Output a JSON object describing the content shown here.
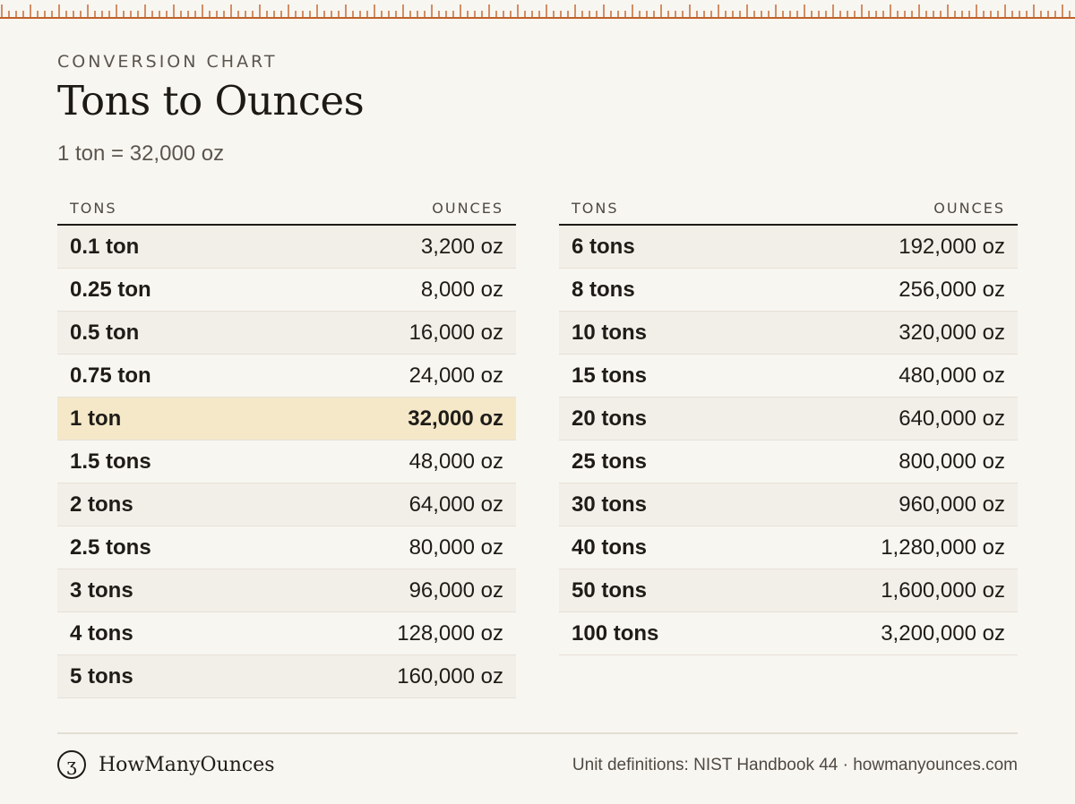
{
  "header": {
    "eyebrow": "CONVERSION CHART",
    "title": "Tons to Ounces",
    "subtitle": "1 ton = 32,000 oz"
  },
  "columns": {
    "tons": "TONS",
    "ounces": "OUNCES"
  },
  "left_rows": [
    {
      "tons": "0.1 ton",
      "oz": "3,200 oz"
    },
    {
      "tons": "0.25 ton",
      "oz": "8,000 oz"
    },
    {
      "tons": "0.5 ton",
      "oz": "16,000 oz"
    },
    {
      "tons": "0.75 ton",
      "oz": "24,000 oz"
    },
    {
      "tons": "1 ton",
      "oz": "32,000 oz",
      "highlight": true
    },
    {
      "tons": "1.5 tons",
      "oz": "48,000 oz"
    },
    {
      "tons": "2 tons",
      "oz": "64,000 oz"
    },
    {
      "tons": "2.5 tons",
      "oz": "80,000 oz"
    },
    {
      "tons": "3 tons",
      "oz": "96,000 oz"
    },
    {
      "tons": "4 tons",
      "oz": "128,000 oz"
    },
    {
      "tons": "5 tons",
      "oz": "160,000 oz"
    }
  ],
  "right_rows": [
    {
      "tons": "6 tons",
      "oz": "192,000 oz"
    },
    {
      "tons": "8 tons",
      "oz": "256,000 oz"
    },
    {
      "tons": "10 tons",
      "oz": "320,000 oz"
    },
    {
      "tons": "15 tons",
      "oz": "480,000 oz"
    },
    {
      "tons": "20 tons",
      "oz": "640,000 oz"
    },
    {
      "tons": "25 tons",
      "oz": "800,000 oz"
    },
    {
      "tons": "30 tons",
      "oz": "960,000 oz"
    },
    {
      "tons": "40 tons",
      "oz": "1,280,000 oz"
    },
    {
      "tons": "50 tons",
      "oz": "1,600,000 oz"
    },
    {
      "tons": "100 tons",
      "oz": "3,200,000 oz"
    }
  ],
  "footer": {
    "logo_glyph": "ʒ",
    "brand": "HowManyOunces",
    "note": "Unit definitions: NIST Handbook 44 · howmanyounces.com"
  },
  "colors": {
    "background": "#f8f6f1",
    "ruler": "#c0622a",
    "row_alt": "#f2efe8",
    "highlight": "#f4e8c9"
  }
}
